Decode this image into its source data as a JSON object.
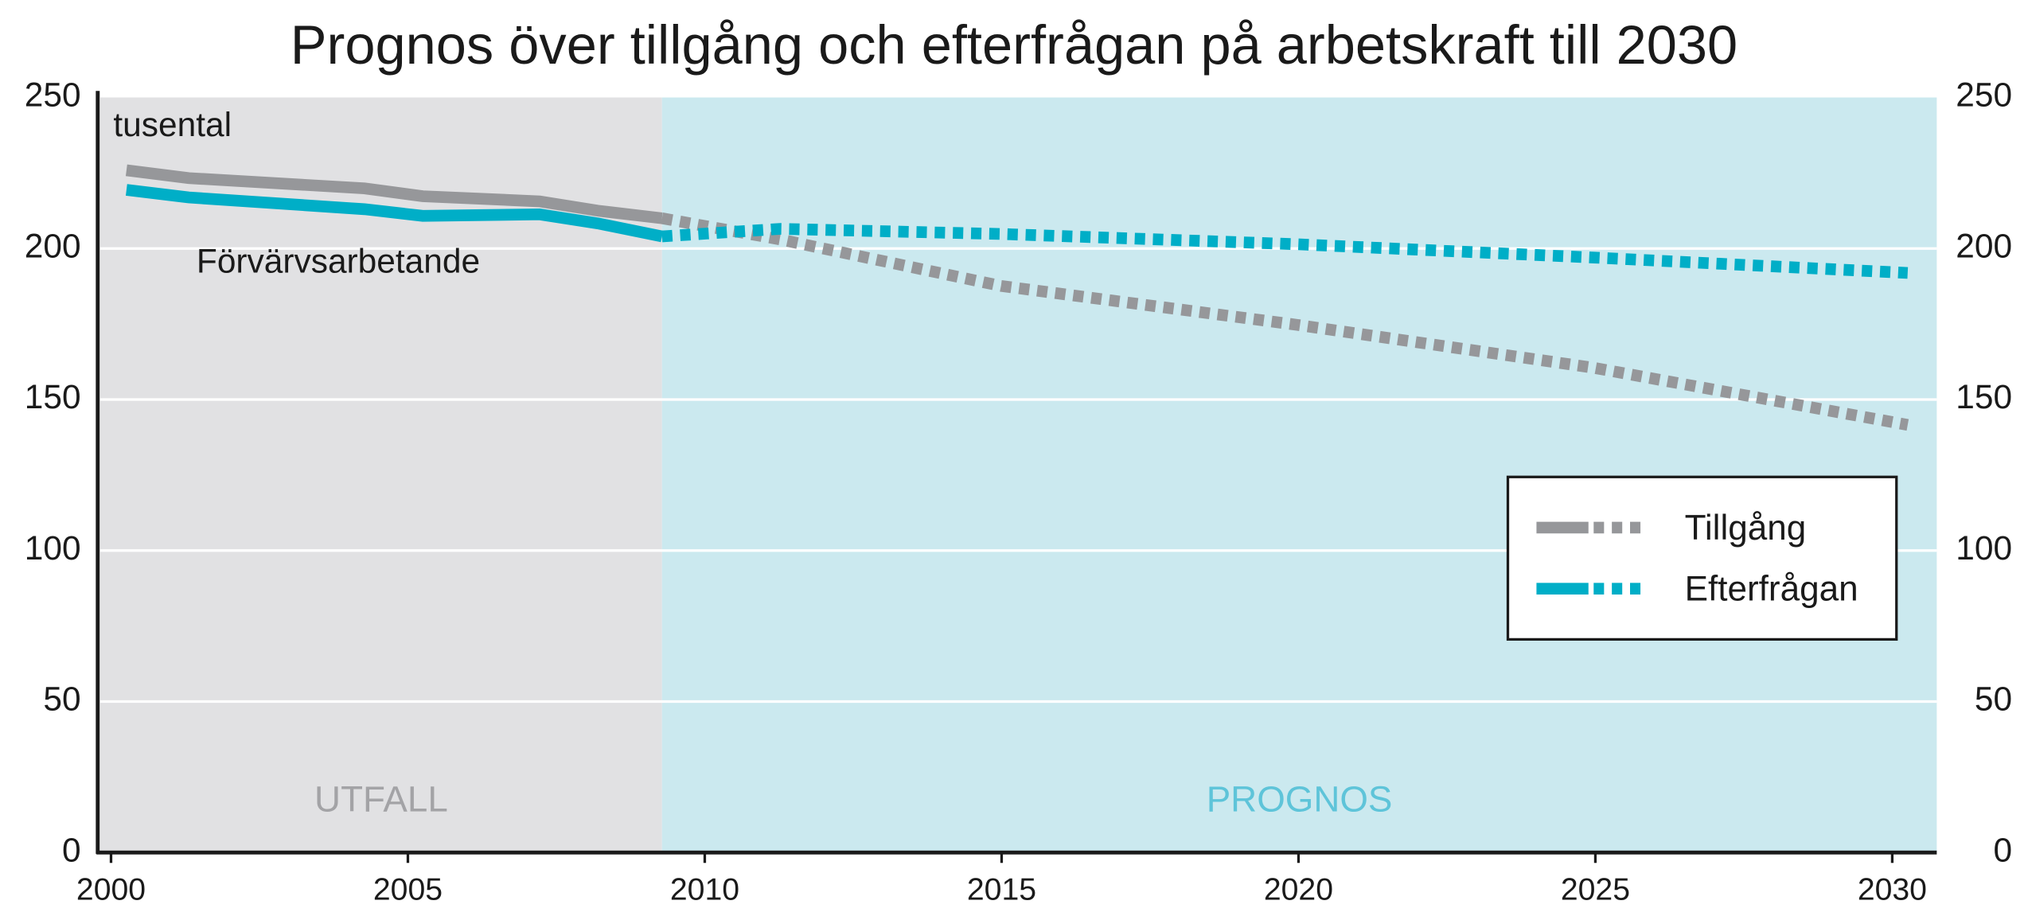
{
  "chart_data": {
    "type": "line",
    "title": "Prognos över tillgång och efterfrågan på arbetskraft till 2030",
    "annotations": [
      "tusental",
      "Förvärvsarbetande"
    ],
    "regions": [
      {
        "label": "UTFALL",
        "xlim": [
          1999.82,
          2009.28
        ],
        "color": "#e1e1e3",
        "label_color": "#a3a3a6",
        "line_style": "solid"
      },
      {
        "label": "PROGNOS",
        "xlim": [
          2009.28,
          2030.75
        ],
        "color": "#cbe9ef",
        "label_color": "#5ec4d9",
        "line_style": "dotted"
      }
    ],
    "x": [
      2000.26,
      2001.31,
      2004.27,
      2005.25,
      2007.22,
      2008.2,
      2009.28,
      2011.27,
      2014.99,
      2019.98,
      2024.97,
      2030.26
    ],
    "series": [
      {
        "name": "Tillgång",
        "color": "#96979a",
        "values": [
          225.9,
          223.3,
          219.9,
          217.3,
          215.6,
          212.5,
          210,
          203,
          187.6,
          174.7,
          160.5,
          141.6
        ]
      },
      {
        "name": "Efterfrågan",
        "color": "#00aec7",
        "values": [
          219.4,
          216.9,
          213,
          210.8,
          211.3,
          208.3,
          204,
          206.5,
          204.8,
          201.4,
          197,
          191.9
        ]
      }
    ],
    "xlim": [
      1999.82,
      2030.75
    ],
    "xticks": [
      2000,
      2005,
      2010,
      2015,
      2020,
      2025,
      2030
    ],
    "ylim": [
      0,
      250
    ],
    "yticks": [
      0,
      50,
      100,
      150,
      200,
      250
    ],
    "y2lim": [
      0,
      250
    ],
    "y2ticks": [
      0,
      50,
      100,
      150,
      200,
      250
    ],
    "grid": true,
    "legend": "center right"
  }
}
